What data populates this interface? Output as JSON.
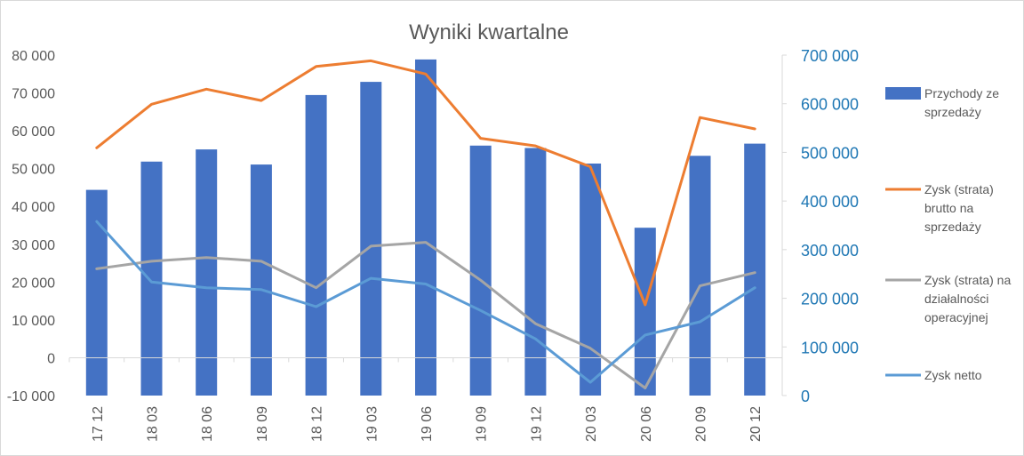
{
  "chart_data": {
    "type": "bar",
    "title": "Wyniki kwartalne",
    "categories": [
      "17 12",
      "18 03",
      "18 06",
      "18 09",
      "18 12",
      "19 03",
      "19 06",
      "19 09",
      "19 12",
      "20 03",
      "20 06",
      "20 09",
      "20 12"
    ],
    "y_left": {
      "ylim": [
        -10000,
        80000
      ],
      "ticks": [
        "80 000",
        "70 000",
        "60 000",
        "50 000",
        "40 000",
        "30 000",
        "20 000",
        "10 000",
        "0",
        "-10 000"
      ]
    },
    "y_right": {
      "ylim": [
        0,
        700000
      ],
      "ticks": [
        "700 000",
        "600 000",
        "500 000",
        "400 000",
        "300 000",
        "200 000",
        "100 000",
        "0"
      ]
    },
    "series": [
      {
        "name": "Przychody ze sprzedaży",
        "type": "bar",
        "axis": "right",
        "color": "#4472c4",
        "values": [
          423000,
          481000,
          506000,
          475000,
          618000,
          645000,
          691000,
          514000,
          509000,
          477000,
          345000,
          493000,
          518000
        ]
      },
      {
        "name": "Zysk (strata) brutto na sprzedaży",
        "type": "line",
        "axis": "left",
        "color": "#ed7d31",
        "values": [
          55500,
          67000,
          71000,
          68000,
          77000,
          78500,
          75000,
          58000,
          56000,
          50500,
          14000,
          63500,
          60500
        ]
      },
      {
        "name": "Zysk (strata) na działalności operacyjnej",
        "type": "line",
        "axis": "left",
        "color": "#a5a5a5",
        "values": [
          23500,
          25500,
          26500,
          25500,
          18500,
          29500,
          30500,
          20500,
          9000,
          2500,
          -8000,
          19000,
          22500
        ]
      },
      {
        "name": "Zysk netto",
        "type": "line",
        "axis": "left",
        "color": "#5b9bd5",
        "values": [
          36000,
          20000,
          18500,
          18000,
          13500,
          21000,
          19500,
          12500,
          5000,
          -6500,
          6000,
          9500,
          18500
        ]
      }
    ],
    "legend": "right",
    "grid": false
  },
  "legend_labels": [
    [
      "Przychody ze",
      "sprzedaży"
    ],
    [
      "Zysk (strata)",
      "brutto na",
      "sprzedaży"
    ],
    [
      "Zysk (strata) na",
      "działalności",
      "operacyjnej"
    ],
    [
      "Zysk netto"
    ]
  ]
}
